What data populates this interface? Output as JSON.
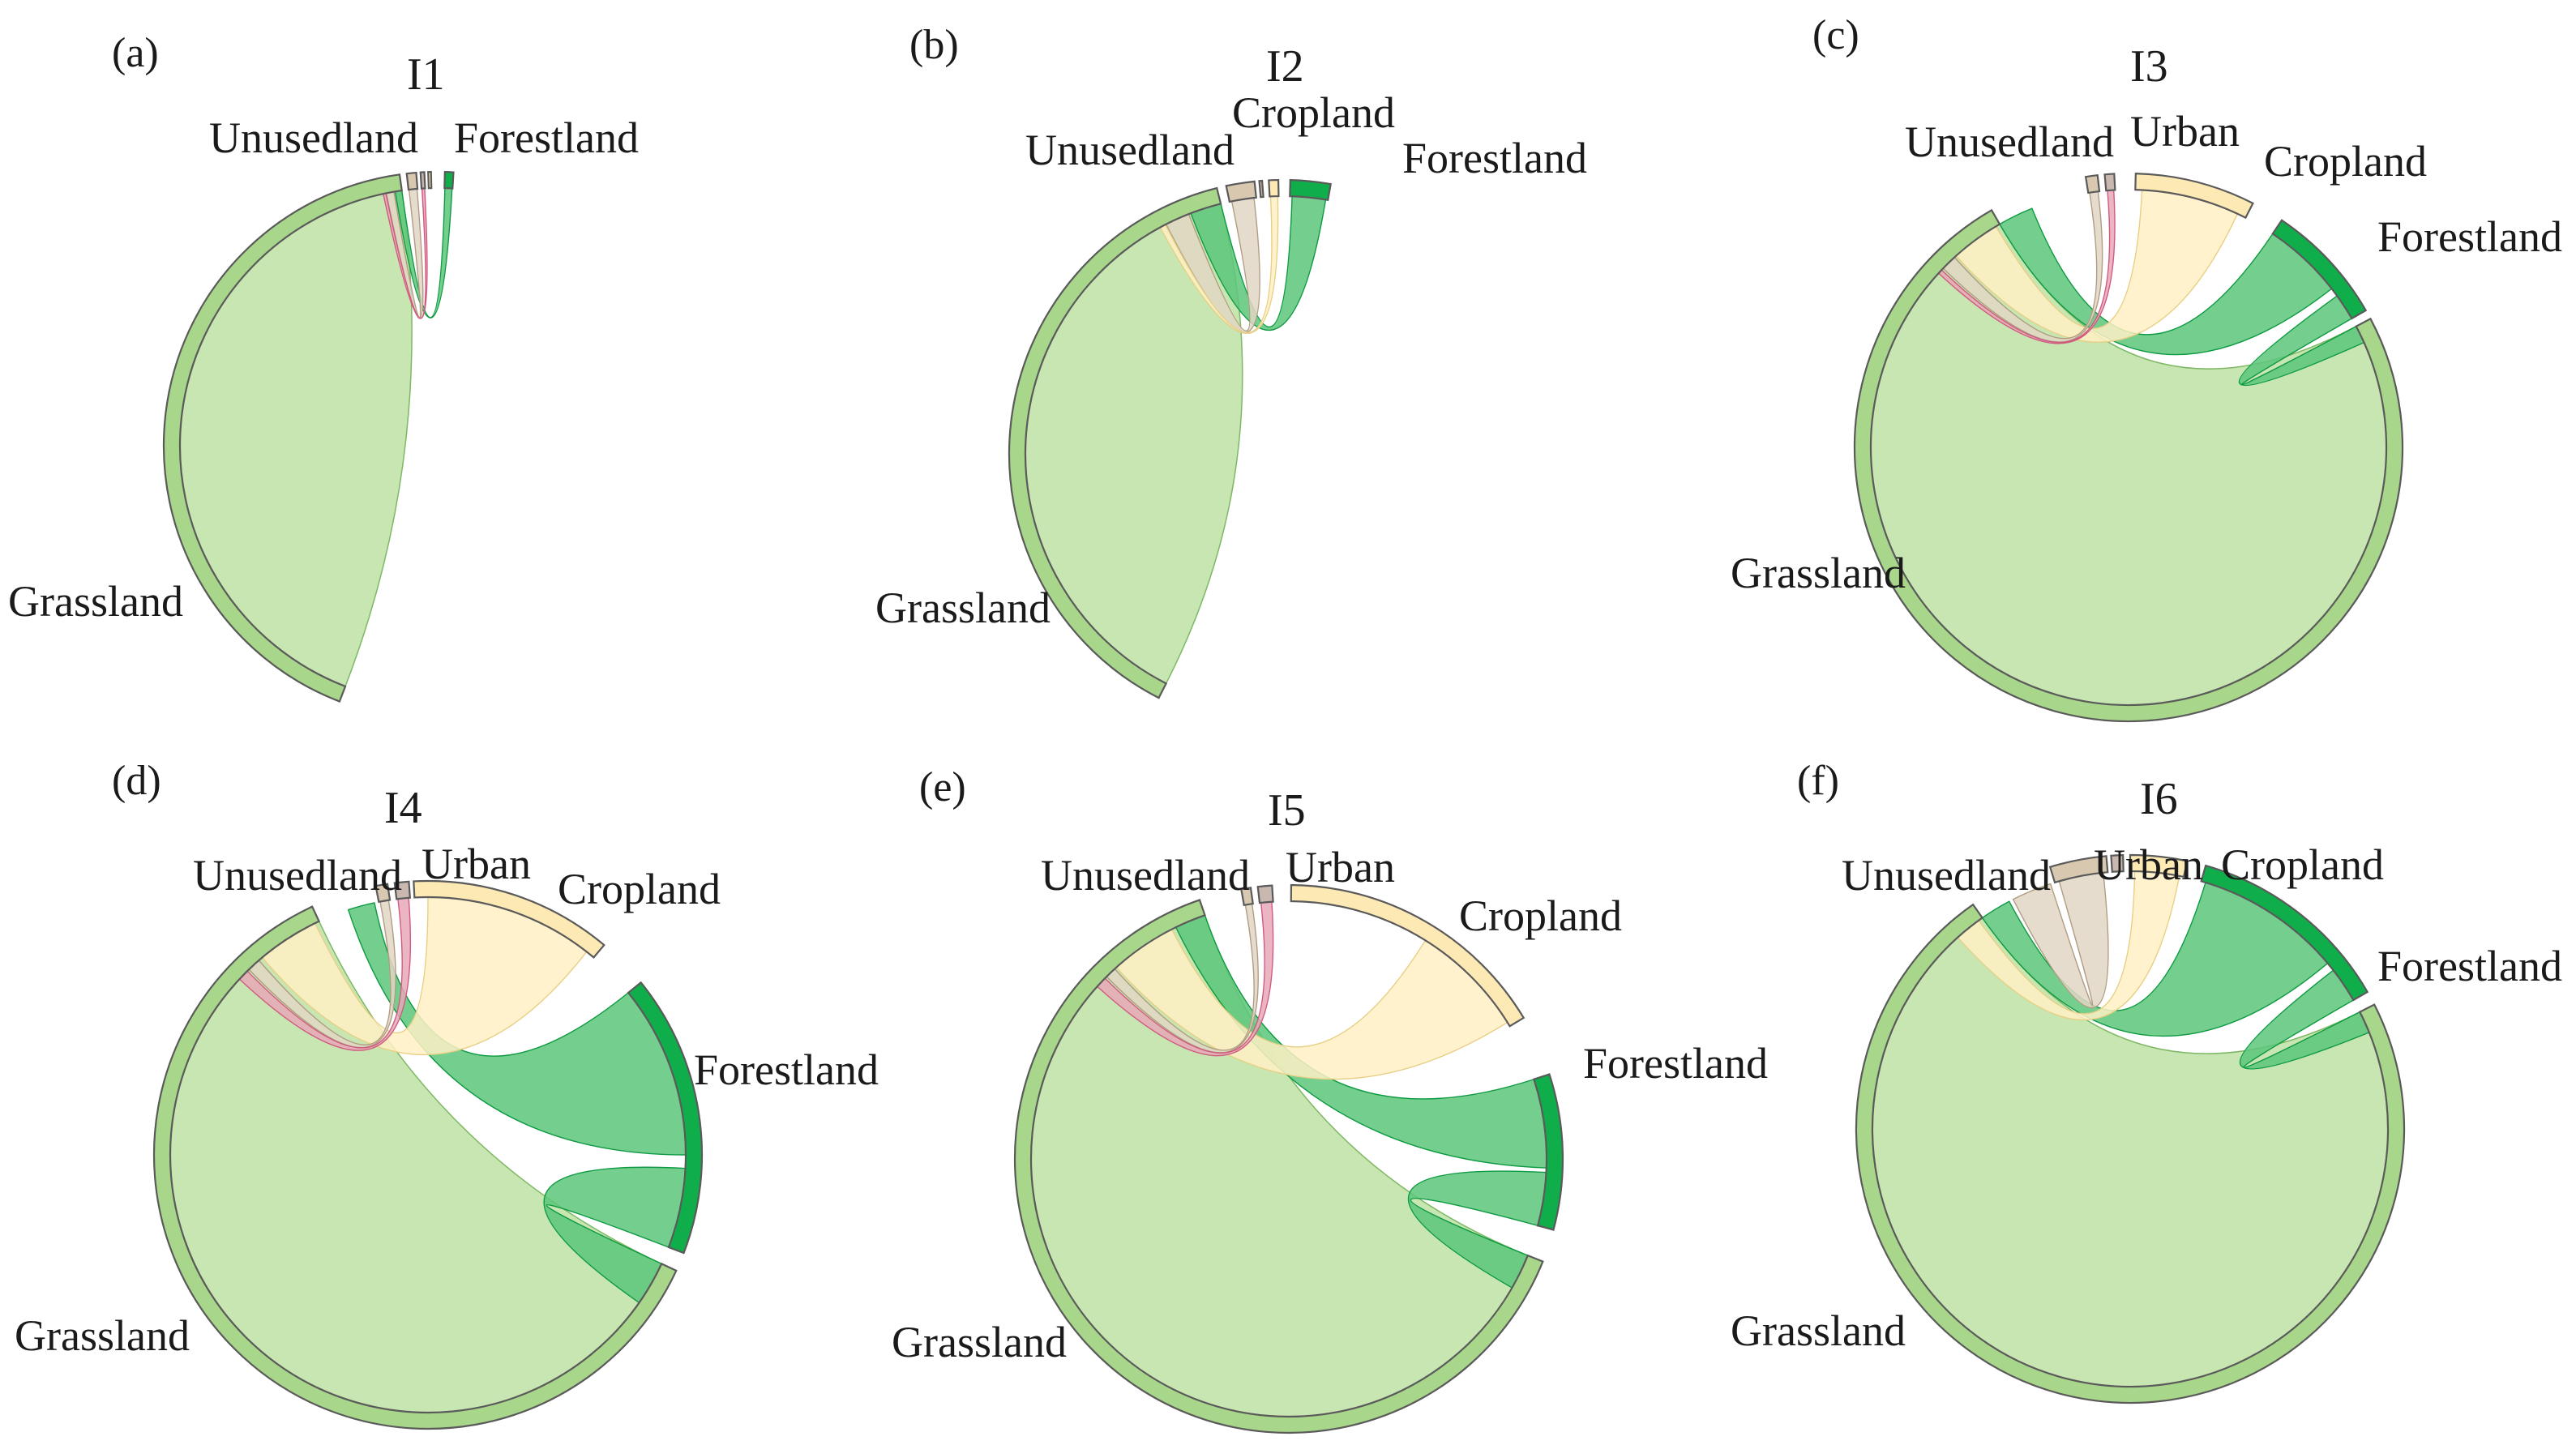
{
  "colors": {
    "Grassland": {
      "ring": "#a8d68a",
      "fill": "#c4e5ad",
      "stroke": "#7fb865"
    },
    "Forestland": {
      "ring": "#0fae4a",
      "fill": "#5cc57a",
      "stroke": "#0e9a42"
    },
    "Cropland": {
      "ring": "#fde9b4",
      "fill": "#fff0c4",
      "stroke": "#e8cf86"
    },
    "Urban": {
      "ring": "#c8b8b0",
      "fill": "#e7a8b8",
      "stroke": "#d05a80"
    },
    "Unusedland": {
      "ring": "#d8c8b0",
      "fill": "#e2d6c4",
      "stroke": "#b09c82"
    }
  },
  "panels": [
    {
      "letter": "(a)",
      "title": "I1",
      "nodes": [
        {
          "name": "Grassland",
          "label": "Grassland",
          "start": 201,
          "end": 352
        },
        {
          "name": "Unusedland",
          "label": "Unusedland",
          "start": 353.5,
          "end": 355.5
        },
        {
          "name": "Urban",
          "label": "",
          "start": 356.4,
          "end": 357.2
        },
        {
          "name": "Cropland",
          "label": "",
          "start": 358,
          "end": 358.6
        },
        {
          "name": "Forestland",
          "label": "Forestland",
          "start": 1.5,
          "end": 3.3
        }
      ],
      "flows": [
        {
          "from": "Grassland",
          "fs": 350.5,
          "fe": 352,
          "to": "Forestland",
          "ts": 1.6,
          "te": 3.2
        },
        {
          "from": "Grassland",
          "fs": 348.5,
          "fe": 350.2,
          "to": "Unusedland",
          "ts": 353.6,
          "te": 355.4
        },
        {
          "from": "Grassland",
          "fs": 347.8,
          "fe": 348.4,
          "to": "Urban",
          "ts": 356.5,
          "te": 357.1
        }
      ]
    },
    {
      "letter": "(b)",
      "title": "I2",
      "nodes": [
        {
          "name": "Grassland",
          "label": "Grassland",
          "start": 207,
          "end": 346
        },
        {
          "name": "Unusedland",
          "label": "Unusedland",
          "start": 348,
          "end": 354
        },
        {
          "name": "Urban",
          "label": "",
          "start": 355,
          "end": 355.6
        },
        {
          "name": "Cropland",
          "label": "Cropland",
          "start": 357,
          "end": 359
        },
        {
          "name": "Forestland",
          "label": "Forestland",
          "start": 1.5,
          "end": 10
        }
      ],
      "flows": [
        {
          "from": "Grassland",
          "fs": 339,
          "fe": 346,
          "to": "Forestland",
          "ts": 2,
          "te": 9.5
        },
        {
          "from": "Grassland",
          "fs": 333,
          "fe": 338.5,
          "to": "Unusedland",
          "ts": 348.5,
          "te": 353.5
        },
        {
          "from": "Grassland",
          "fs": 331.5,
          "fe": 332.8,
          "to": "Cropland",
          "ts": 357.2,
          "te": 358.8
        }
      ]
    },
    {
      "letter": "(c)",
      "title": "I3",
      "nodes": [
        {
          "name": "Grassland",
          "label": "Grassland",
          "start": 62,
          "end": 330
        },
        {
          "name": "Unusedland",
          "label": "Unusedland",
          "start": 351,
          "end": 353.5
        },
        {
          "name": "Urban",
          "label": "Urban",
          "start": 355,
          "end": 357
        },
        {
          "name": "Cropland",
          "label": "Cropland",
          "start": 1.5,
          "end": 27
        },
        {
          "name": "Forestland",
          "label": "Forestland",
          "start": 34,
          "end": 60
        }
      ],
      "flows": [
        {
          "from": "Grassland",
          "fs": 62,
          "fe": 66,
          "to": "Forestland",
          "ts": 54,
          "te": 60
        },
        {
          "from": "Grassland",
          "fs": 330,
          "fe": 338,
          "to": "Forestland",
          "ts": 34,
          "te": 52
        },
        {
          "from": "Grassland",
          "fs": 318,
          "fe": 329,
          "to": "Cropland",
          "ts": 3,
          "te": 25
        },
        {
          "from": "Grassland",
          "fs": 314,
          "fe": 317.5,
          "to": "Unusedland",
          "ts": 351.3,
          "te": 353.2
        },
        {
          "from": "Grassland",
          "fs": 312.5,
          "fe": 313.5,
          "to": "Urban",
          "ts": 355.3,
          "te": 356.7
        }
      ]
    },
    {
      "letter": "(d)",
      "title": "I4",
      "nodes": [
        {
          "name": "Grassland",
          "label": "Grassland",
          "start": 115,
          "end": 335
        },
        {
          "name": "Unusedland",
          "label": "Unusedland",
          "start": 349,
          "end": 351.5
        },
        {
          "name": "Urban",
          "label": "Urban",
          "start": 353,
          "end": 356
        },
        {
          "name": "Cropland",
          "label": "Cropland",
          "start": 357,
          "end": 40
        },
        {
          "name": "Forestland",
          "label": "Forestland",
          "start": 51,
          "end": 111
        }
      ],
      "flows": [
        {
          "from": "Grassland",
          "fs": 115,
          "fe": 125,
          "to": "Forestland",
          "ts": 93,
          "te": 111
        },
        {
          "from": "Grassland",
          "fs": 342,
          "fe": 348,
          "to": "Forestland",
          "ts": 51,
          "te": 90
        },
        {
          "from": "Grassland",
          "fs": 320,
          "fe": 334,
          "to": "Cropland",
          "ts": 0,
          "te": 38
        },
        {
          "from": "Grassland",
          "fs": 316,
          "fe": 319,
          "to": "Unusedland",
          "ts": 349.3,
          "te": 351.2
        },
        {
          "from": "Grassland",
          "fs": 313,
          "fe": 315.5,
          "to": "Urban",
          "ts": 353.3,
          "te": 355.7
        }
      ]
    },
    {
      "letter": "(e)",
      "title": "I5",
      "nodes": [
        {
          "name": "Grassland",
          "label": "Grassland",
          "start": 112,
          "end": 341
        },
        {
          "name": "Unusedland",
          "label": "Unusedland",
          "start": 350,
          "end": 352
        },
        {
          "name": "Urban",
          "label": "Urban",
          "start": 353.5,
          "end": 356.5
        },
        {
          "name": "Cropland",
          "label": "Cropland",
          "start": 0.5,
          "end": 59
        },
        {
          "name": "Forestland",
          "label": "Forestland",
          "start": 72,
          "end": 105
        }
      ],
      "flows": [
        {
          "from": "Grassland",
          "fs": 112,
          "fe": 120,
          "to": "Forestland",
          "ts": 93,
          "te": 105
        },
        {
          "from": "Grassland",
          "fs": 334,
          "fe": 341,
          "to": "Forestland",
          "ts": 72,
          "te": 92
        },
        {
          "from": "Grassland",
          "fs": 318,
          "fe": 333,
          "to": "Cropland",
          "ts": 32,
          "te": 58
        },
        {
          "from": "Grassland",
          "fs": 315,
          "fe": 317.5,
          "to": "Unusedland",
          "ts": 350.3,
          "te": 351.8
        },
        {
          "from": "Grassland",
          "fs": 312,
          "fe": 314.5,
          "to": "Urban",
          "ts": 353.8,
          "te": 356.2
        }
      ]
    },
    {
      "letter": "(f)",
      "title": "I6",
      "nodes": [
        {
          "name": "Grassland",
          "label": "Grassland",
          "start": 63,
          "end": 325
        },
        {
          "name": "Unusedland",
          "label": "Unusedland",
          "start": 343,
          "end": 355
        },
        {
          "name": "Urban",
          "label": "Urban",
          "start": 356,
          "end": 358.5
        },
        {
          "name": "Cropland",
          "label": "Cropland",
          "start": 360,
          "end": 12
        },
        {
          "name": "Forestland",
          "label": "Forestland",
          "start": 16,
          "end": 60
        }
      ],
      "flows": [
        {
          "from": "Grassland",
          "fs": 63,
          "fe": 68,
          "to": "Forestland",
          "ts": 52,
          "te": 60
        },
        {
          "from": "Grassland",
          "fs": 325,
          "fe": 332,
          "to": "Forestland",
          "ts": 17,
          "te": 50
        },
        {
          "from": "Grassland",
          "fs": 333,
          "fe": 342,
          "to": "Unusedland",
          "ts": 344,
          "te": 354
        },
        {
          "from": "Grassland",
          "fs": 318,
          "fe": 324,
          "to": "Cropland",
          "ts": 1,
          "te": 11
        }
      ]
    }
  ]
}
